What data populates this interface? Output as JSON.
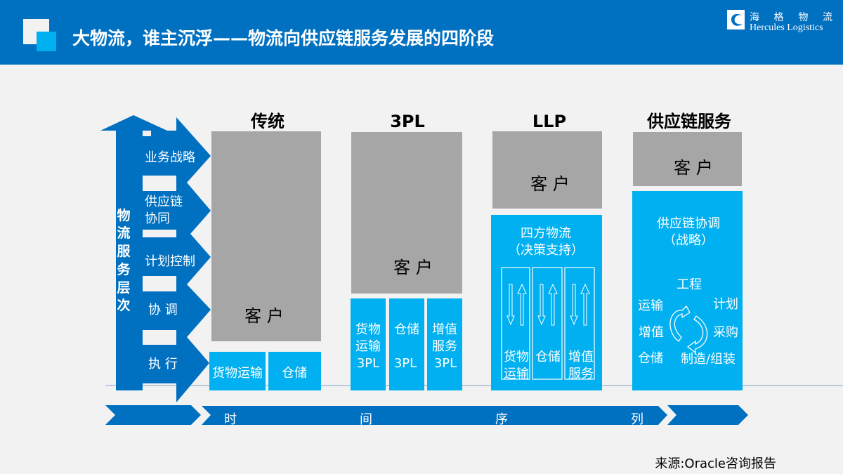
{
  "header": {
    "title": "大物流，谁主沉浮——物流向供应链服务发展的四阶段",
    "logo_cn": "海 格 物 流",
    "logo_en": "Hercules Logistics"
  },
  "colors": {
    "header": "#0070C0",
    "accent": "#00B0F0",
    "customer": "#A6A6A6"
  },
  "axis": {
    "vertical_label": [
      "物",
      "流",
      "服",
      "务",
      "层",
      "次"
    ],
    "levels": [
      "业务战略",
      "供应链",
      "协同",
      "计划控制",
      "协 调",
      "执 行"
    ],
    "time_label": [
      "时",
      "间",
      "序",
      "列"
    ]
  },
  "stages": [
    {
      "title": "传统",
      "customer": "客 户",
      "services": [
        "货物运输",
        "仓储"
      ]
    },
    {
      "title": "3PL",
      "customer": "客 户",
      "services": [
        [
          "货物",
          "运输",
          "3PL"
        ],
        [
          "仓储",
          "",
          "3PL"
        ],
        [
          "增值",
          "服务",
          "3PL"
        ]
      ]
    },
    {
      "title": "LLP",
      "customer": "客 户",
      "header": [
        "四方物流",
        "（决策支持）"
      ],
      "services": [
        [
          "货物",
          "运输"
        ],
        [
          "仓储"
        ],
        [
          "增值",
          "服务"
        ]
      ]
    },
    {
      "title": "供应链服务",
      "customer": "客 户",
      "header": [
        "供应链协调",
        "（战略）"
      ],
      "cycle": [
        "工程",
        "运输",
        "计划",
        "增值",
        "采购",
        "仓储",
        "制造/组装"
      ]
    }
  ],
  "source": "来源:Oracle咨询报告"
}
